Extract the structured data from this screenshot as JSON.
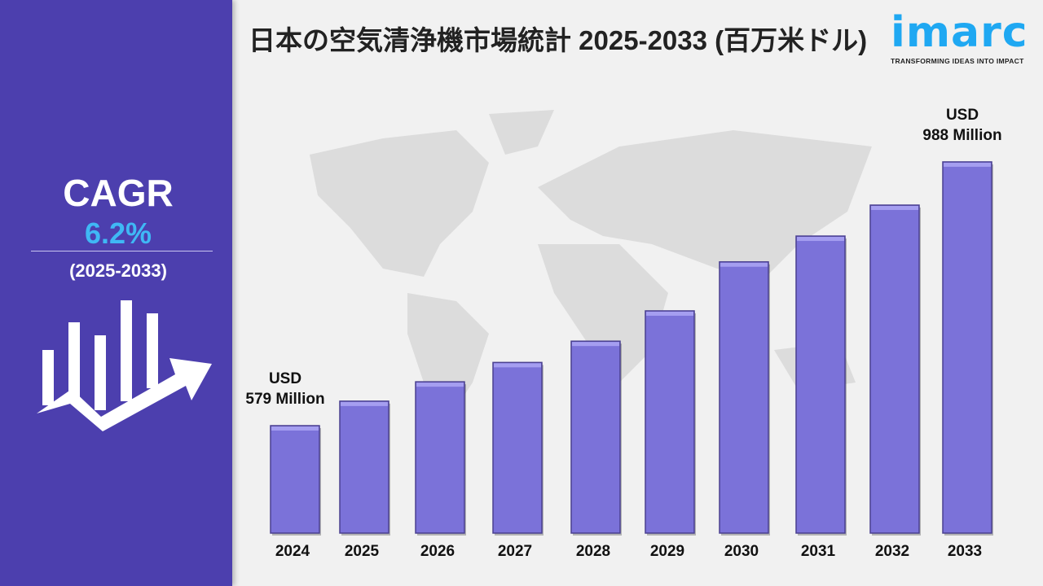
{
  "title": "日本の空気清浄機市場統計 2025-2033 (百万米ドル)",
  "logo": {
    "word": "imarc",
    "tagline": "TRANSFORMING IDEAS INTO IMPACT"
  },
  "sidebar": {
    "cagr_label": "CAGR",
    "cagr_value": "6.2%",
    "period": "(2025-2033)",
    "icon": "bar-chart-growth-arrow-icon"
  },
  "colors": {
    "sidebar": "#4c3fae",
    "bar": "#7b72d9",
    "cagr_value": "#3fb8f5",
    "logo": "#1fa8f2"
  },
  "chart_data": {
    "type": "bar",
    "title": "日本の空気清浄機市場統計 2025-2033 (百万米ドル)",
    "categories": [
      "2024",
      "2025",
      "2026",
      "2027",
      "2028",
      "2029",
      "2030",
      "2031",
      "2032",
      "2033"
    ],
    "values": [
      579,
      617,
      647,
      677,
      710,
      757,
      833,
      873,
      921,
      988
    ],
    "ylabel": "",
    "xlabel": "",
    "annotations": [
      {
        "category": "2024",
        "line1": "USD",
        "line2": "579 Million"
      },
      {
        "category": "2033",
        "line1": "USD",
        "line2": "988 Million"
      }
    ],
    "grid": false
  }
}
